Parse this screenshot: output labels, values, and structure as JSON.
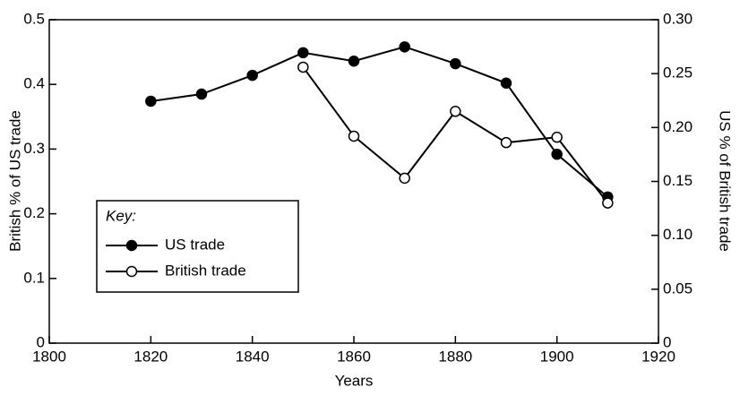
{
  "chart_data": {
    "type": "line",
    "x_label": "Years",
    "y_label": "British % of US trade",
    "y2_label": "US % of British trade",
    "x": [
      1820,
      1830,
      1840,
      1850,
      1860,
      1870,
      1880,
      1890,
      1900,
      1910
    ],
    "series": [
      {
        "name": "US trade",
        "color": "#000000",
        "marker": "filled",
        "values": [
          0.374,
          0.385,
          0.414,
          0.449,
          0.436,
          0.458,
          0.432,
          0.402,
          0.292,
          0.226
        ]
      },
      {
        "name": "British trade",
        "color": "#000000",
        "marker": "open",
        "axis": "y2",
        "values": [
          null,
          null,
          null,
          0.256,
          0.192,
          0.153,
          0.215,
          0.186,
          0.191,
          0.13
        ]
      }
    ],
    "xlim": [
      1800,
      1920
    ],
    "xticks": [
      1800,
      1820,
      1840,
      1860,
      1880,
      1900,
      1920
    ],
    "ylim": [
      0,
      0.5
    ],
    "yticks": [
      0,
      0.1,
      0.2,
      0.3,
      0.4,
      0.5
    ],
    "y2lim": [
      0,
      0.3
    ],
    "y2ticks": [
      0,
      0.05,
      {
        "value": 0.1,
        "label": "0.10"
      },
      0.15,
      {
        "value": 0.2,
        "label": "0.20"
      },
      0.25,
      {
        "value": 0.3,
        "label": "0.30"
      }
    ],
    "legend_title": "Key:",
    "legend": "bottom-left"
  }
}
